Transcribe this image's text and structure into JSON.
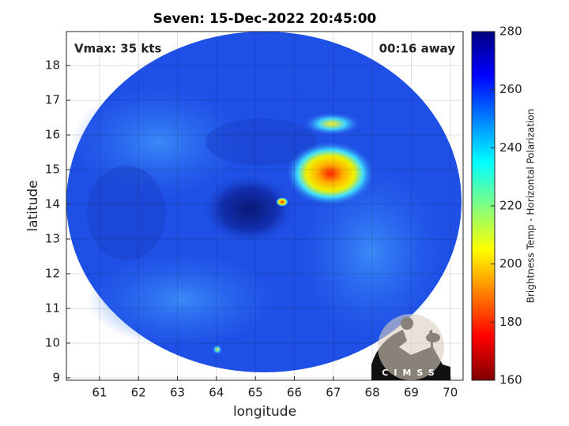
{
  "chart_data": {
    "type": "image",
    "title": "Seven: 15-Dec-2022 20:45:00",
    "annotations": [
      "Vmax: 35 kts",
      "00:16 away"
    ],
    "xlabel": "longitude",
    "ylabel": "latitude",
    "xlim": [
      60.15,
      70.33
    ],
    "xticks": [
      61,
      62,
      63,
      64,
      65,
      66,
      67,
      68,
      69,
      70
    ],
    "ylim": [
      8.93,
      18.98
    ],
    "yticks": [
      9,
      10,
      11,
      12,
      13,
      14,
      15,
      16,
      17,
      18
    ],
    "grid": true,
    "colorbar_label": "Brightness Temp - Horizontal Polarization",
    "clim": [
      160,
      280
    ],
    "cticks": [
      160,
      180,
      200,
      220,
      240,
      260,
      280
    ],
    "colormap": [
      "#800000",
      "#ff0000",
      "#ff8000",
      "#ffff00",
      "#80ff80",
      "#00ffff",
      "#0080ff",
      "#0000ff",
      "#000080"
    ],
    "logo": "CIMSS"
  }
}
